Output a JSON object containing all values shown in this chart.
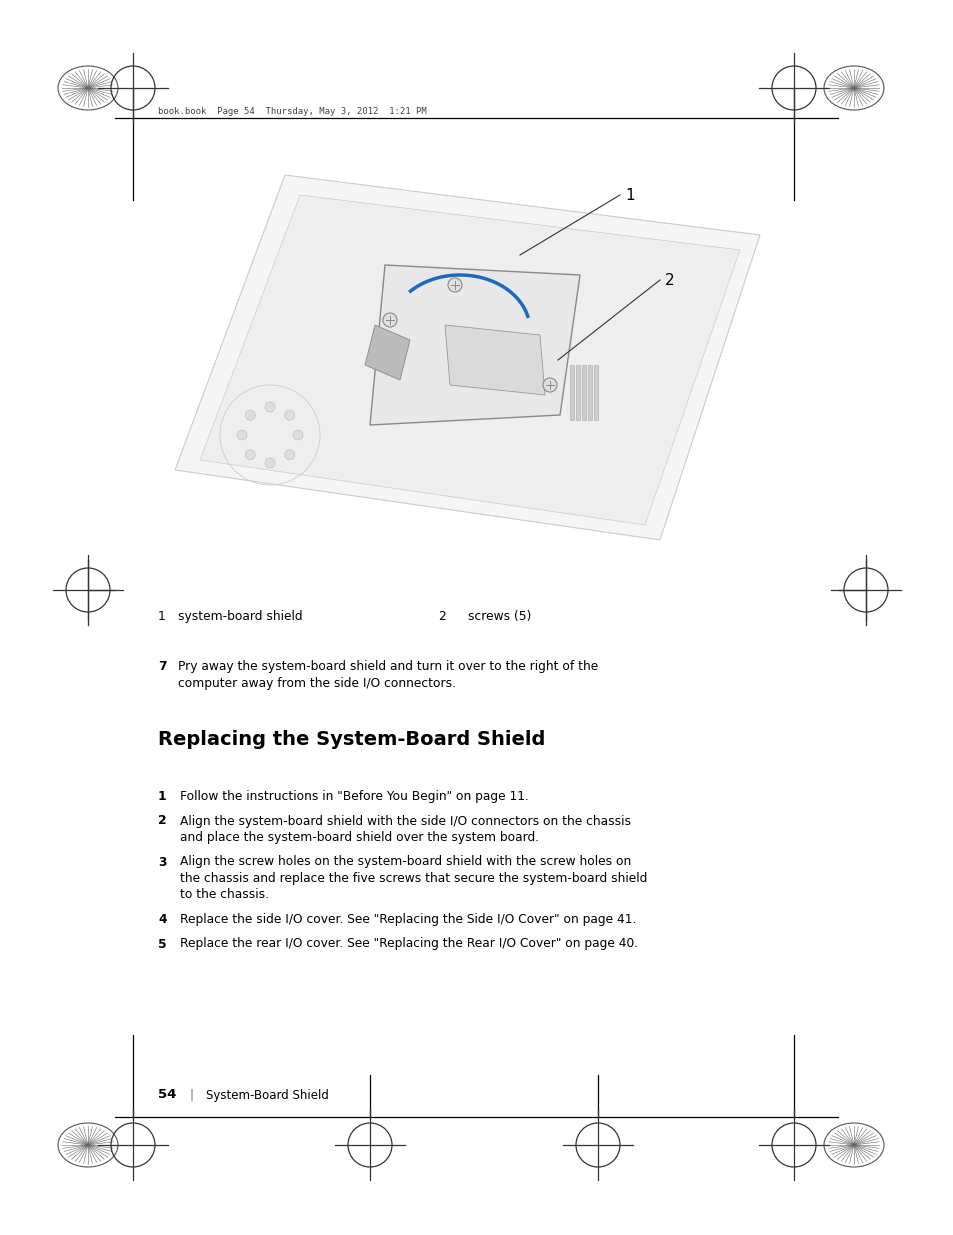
{
  "page_bg": "#ffffff",
  "header_text": "book.book  Page 54  Thursday, May 3, 2012  1:21 PM",
  "label1_num": "1",
  "label1_text": "system-board shield",
  "label2_num": "2",
  "label2_text": "screws (5)",
  "step7_num": "7",
  "step7_line1": "Pry away the system-board shield and turn it over to the right of the",
  "step7_line2": "computer away from the side I/O connectors.",
  "section_title": "Replacing the System-Board Shield",
  "steps": [
    {
      "num": "1",
      "lines": [
        "Follow the instructions in \"Before You Begin\" on page 11."
      ]
    },
    {
      "num": "2",
      "lines": [
        "Align the system-board shield with the side I/O connectors on the chassis",
        "and place the system-board shield over the system board."
      ]
    },
    {
      "num": "3",
      "lines": [
        "Align the screw holes on the system-board shield with the screw holes on",
        "the chassis and replace the five screws that secure the system-board shield",
        "to the chassis."
      ]
    },
    {
      "num": "4",
      "lines": [
        "Replace the side I/O cover. See \"Replacing the Side I/O Cover\" on page 41."
      ]
    },
    {
      "num": "5",
      "lines": [
        "Replace the rear I/O cover. See \"Replacing the Rear I/O Cover\" on page 40."
      ]
    }
  ],
  "footer_page": "54",
  "footer_text": "System-Board Shield",
  "text_color": "#000000",
  "gray_color": "#aaaaaa",
  "blue_color": "#1a6bbf",
  "title_fontsize": 14,
  "body_fontsize": 8.8,
  "header_fontsize": 6.5,
  "footer_fontsize": 8.5
}
